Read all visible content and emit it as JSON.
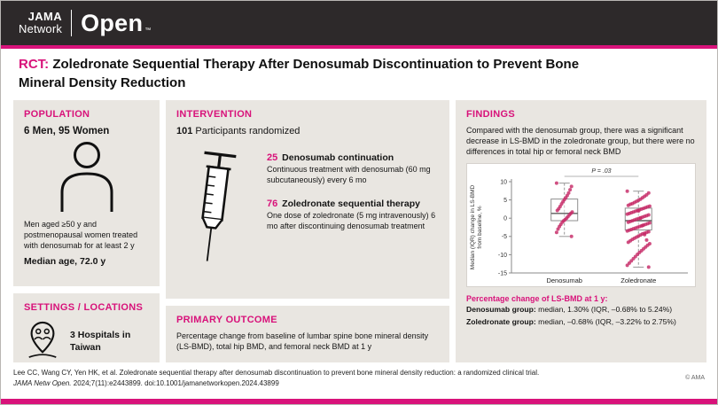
{
  "colors": {
    "accent": "#d8127a",
    "header_bg": "#2d292a",
    "panel_bg": "#e9e6e1",
    "point_color": "#c62a66"
  },
  "header": {
    "brand_jama": "JAMA",
    "brand_network": "Network",
    "brand_open": "Open",
    "trademark": "™"
  },
  "title": {
    "tag": "RCT:",
    "text": "Zoledronate Sequential Therapy After Denosumab Discontinuation to Prevent Bone Mineral Density Reduction"
  },
  "population": {
    "heading": "POPULATION",
    "counts": "6 Men, 95 Women",
    "description": "Men aged ≥50 y and postmenopausal women treated with denosumab for at least 2 y",
    "median_age": "Median age, 72.0 y"
  },
  "settings": {
    "heading": "SETTINGS / LOCATIONS",
    "text": "3 Hospitals in Taiwan"
  },
  "intervention": {
    "heading": "INTERVENTION",
    "randomized_count": "101",
    "randomized_label": "Participants randomized",
    "arms": [
      {
        "count": "25",
        "name": "Denosumab continuation",
        "description": "Continuous treatment with denosumab (60 mg subcutaneously) every 6 mo"
      },
      {
        "count": "76",
        "name": "Zoledronate sequential therapy",
        "description": "One dose of zoledronate (5 mg intravenously) 6 mo after discontinuing denosumab treatment"
      }
    ]
  },
  "primary_outcome": {
    "heading": "PRIMARY OUTCOME",
    "text": "Percentage change from baseline of lumbar spine bone mineral density (LS-BMD), total hip BMD, and femoral neck BMD at 1 y"
  },
  "findings": {
    "heading": "FINDINGS",
    "summary": "Compared with the denosumab group, there was a significant decrease in LS-BMD in the zoledronate group, but there were no differences in total hip or femoral neck BMD",
    "result_heading": "Percentage change of LS-BMD at 1 y:",
    "results": [
      {
        "label": "Denosumab group:",
        "value": " median, 1.30% (IQR, –0.68% to 5.24%)"
      },
      {
        "label": "Zoledronate group:",
        "value": " median, –0.68% (IQR, –3.22% to 2.75%)"
      }
    ]
  },
  "chart_data": {
    "type": "scatter",
    "subtype": "box-jitter",
    "title": "",
    "ylabel": "Median (IQR) change in LS-BMD from baseline, %",
    "ylabel_lines": [
      "Median (IQR) change in LS-BMD",
      "from baseline, %"
    ],
    "ylim": [
      -15,
      10
    ],
    "yticks": [
      10,
      5,
      0,
      -5,
      -10,
      -15
    ],
    "annotation": "P = .03",
    "grid": false,
    "legend_position": "none",
    "categories": [
      "Denosumab",
      "Zoledronate"
    ],
    "point_color": "#c62a66",
    "groups": [
      {
        "name": "Denosumab",
        "n": 25,
        "median": 1.3,
        "q1": -0.68,
        "q3": 5.24,
        "whisker_low": -5.0,
        "whisker_high": 9.6,
        "points": [
          9.6,
          8.7,
          7.8,
          6.9,
          6.2,
          5.6,
          5.1,
          4.5,
          3.9,
          3.2,
          2.6,
          2.1,
          1.7,
          1.3,
          0.9,
          0.4,
          0.0,
          -0.4,
          -0.7,
          -1.1,
          -1.7,
          -2.3,
          -3.0,
          -3.9,
          -5.0
        ]
      },
      {
        "name": "Zoledronate",
        "n": 76,
        "median": -0.68,
        "q1": -3.22,
        "q3": 2.75,
        "whisker_low": -13.4,
        "whisker_high": 7.4,
        "points": [
          7.4,
          6.9,
          6.4,
          6.0,
          5.6,
          5.2,
          4.9,
          4.6,
          4.3,
          4.0,
          3.8,
          3.5,
          3.3,
          3.1,
          2.9,
          2.7,
          2.5,
          2.3,
          2.1,
          1.9,
          1.7,
          1.5,
          1.3,
          1.1,
          0.9,
          0.7,
          0.5,
          0.3,
          0.1,
          -0.1,
          -0.3,
          -0.5,
          -0.7,
          -0.9,
          -1.1,
          -1.3,
          -1.5,
          -1.7,
          -1.9,
          -2.1,
          -2.3,
          -2.5,
          -2.7,
          -2.9,
          -3.1,
          -3.3,
          -3.5,
          -3.7,
          -3.9,
          -4.1,
          -4.3,
          -4.6,
          -4.9,
          -5.2,
          -5.5,
          -5.8,
          -6.2,
          -6.6,
          -7.0,
          -7.4,
          -7.9,
          -8.4,
          -8.9,
          -9.4,
          -9.9,
          -10.5,
          -11.1,
          -11.7,
          -12.3,
          -12.9,
          -13.4,
          -6.0,
          -4.5,
          -2.0,
          0.0,
          2.0
        ]
      }
    ]
  },
  "footer": {
    "citation_line1": "Lee CC, Wang CY, Yen HK, et al. Zoledronate sequential therapy after denosumab discontinuation to prevent bone mineral density reduction: a randomized clinical trial.",
    "citation_journal": "JAMA Netw Open.",
    "citation_rest": " 2024;7(11):e2443899. doi:10.1001/jamanetworkopen.2024.43899",
    "copyright": "© AMA"
  }
}
